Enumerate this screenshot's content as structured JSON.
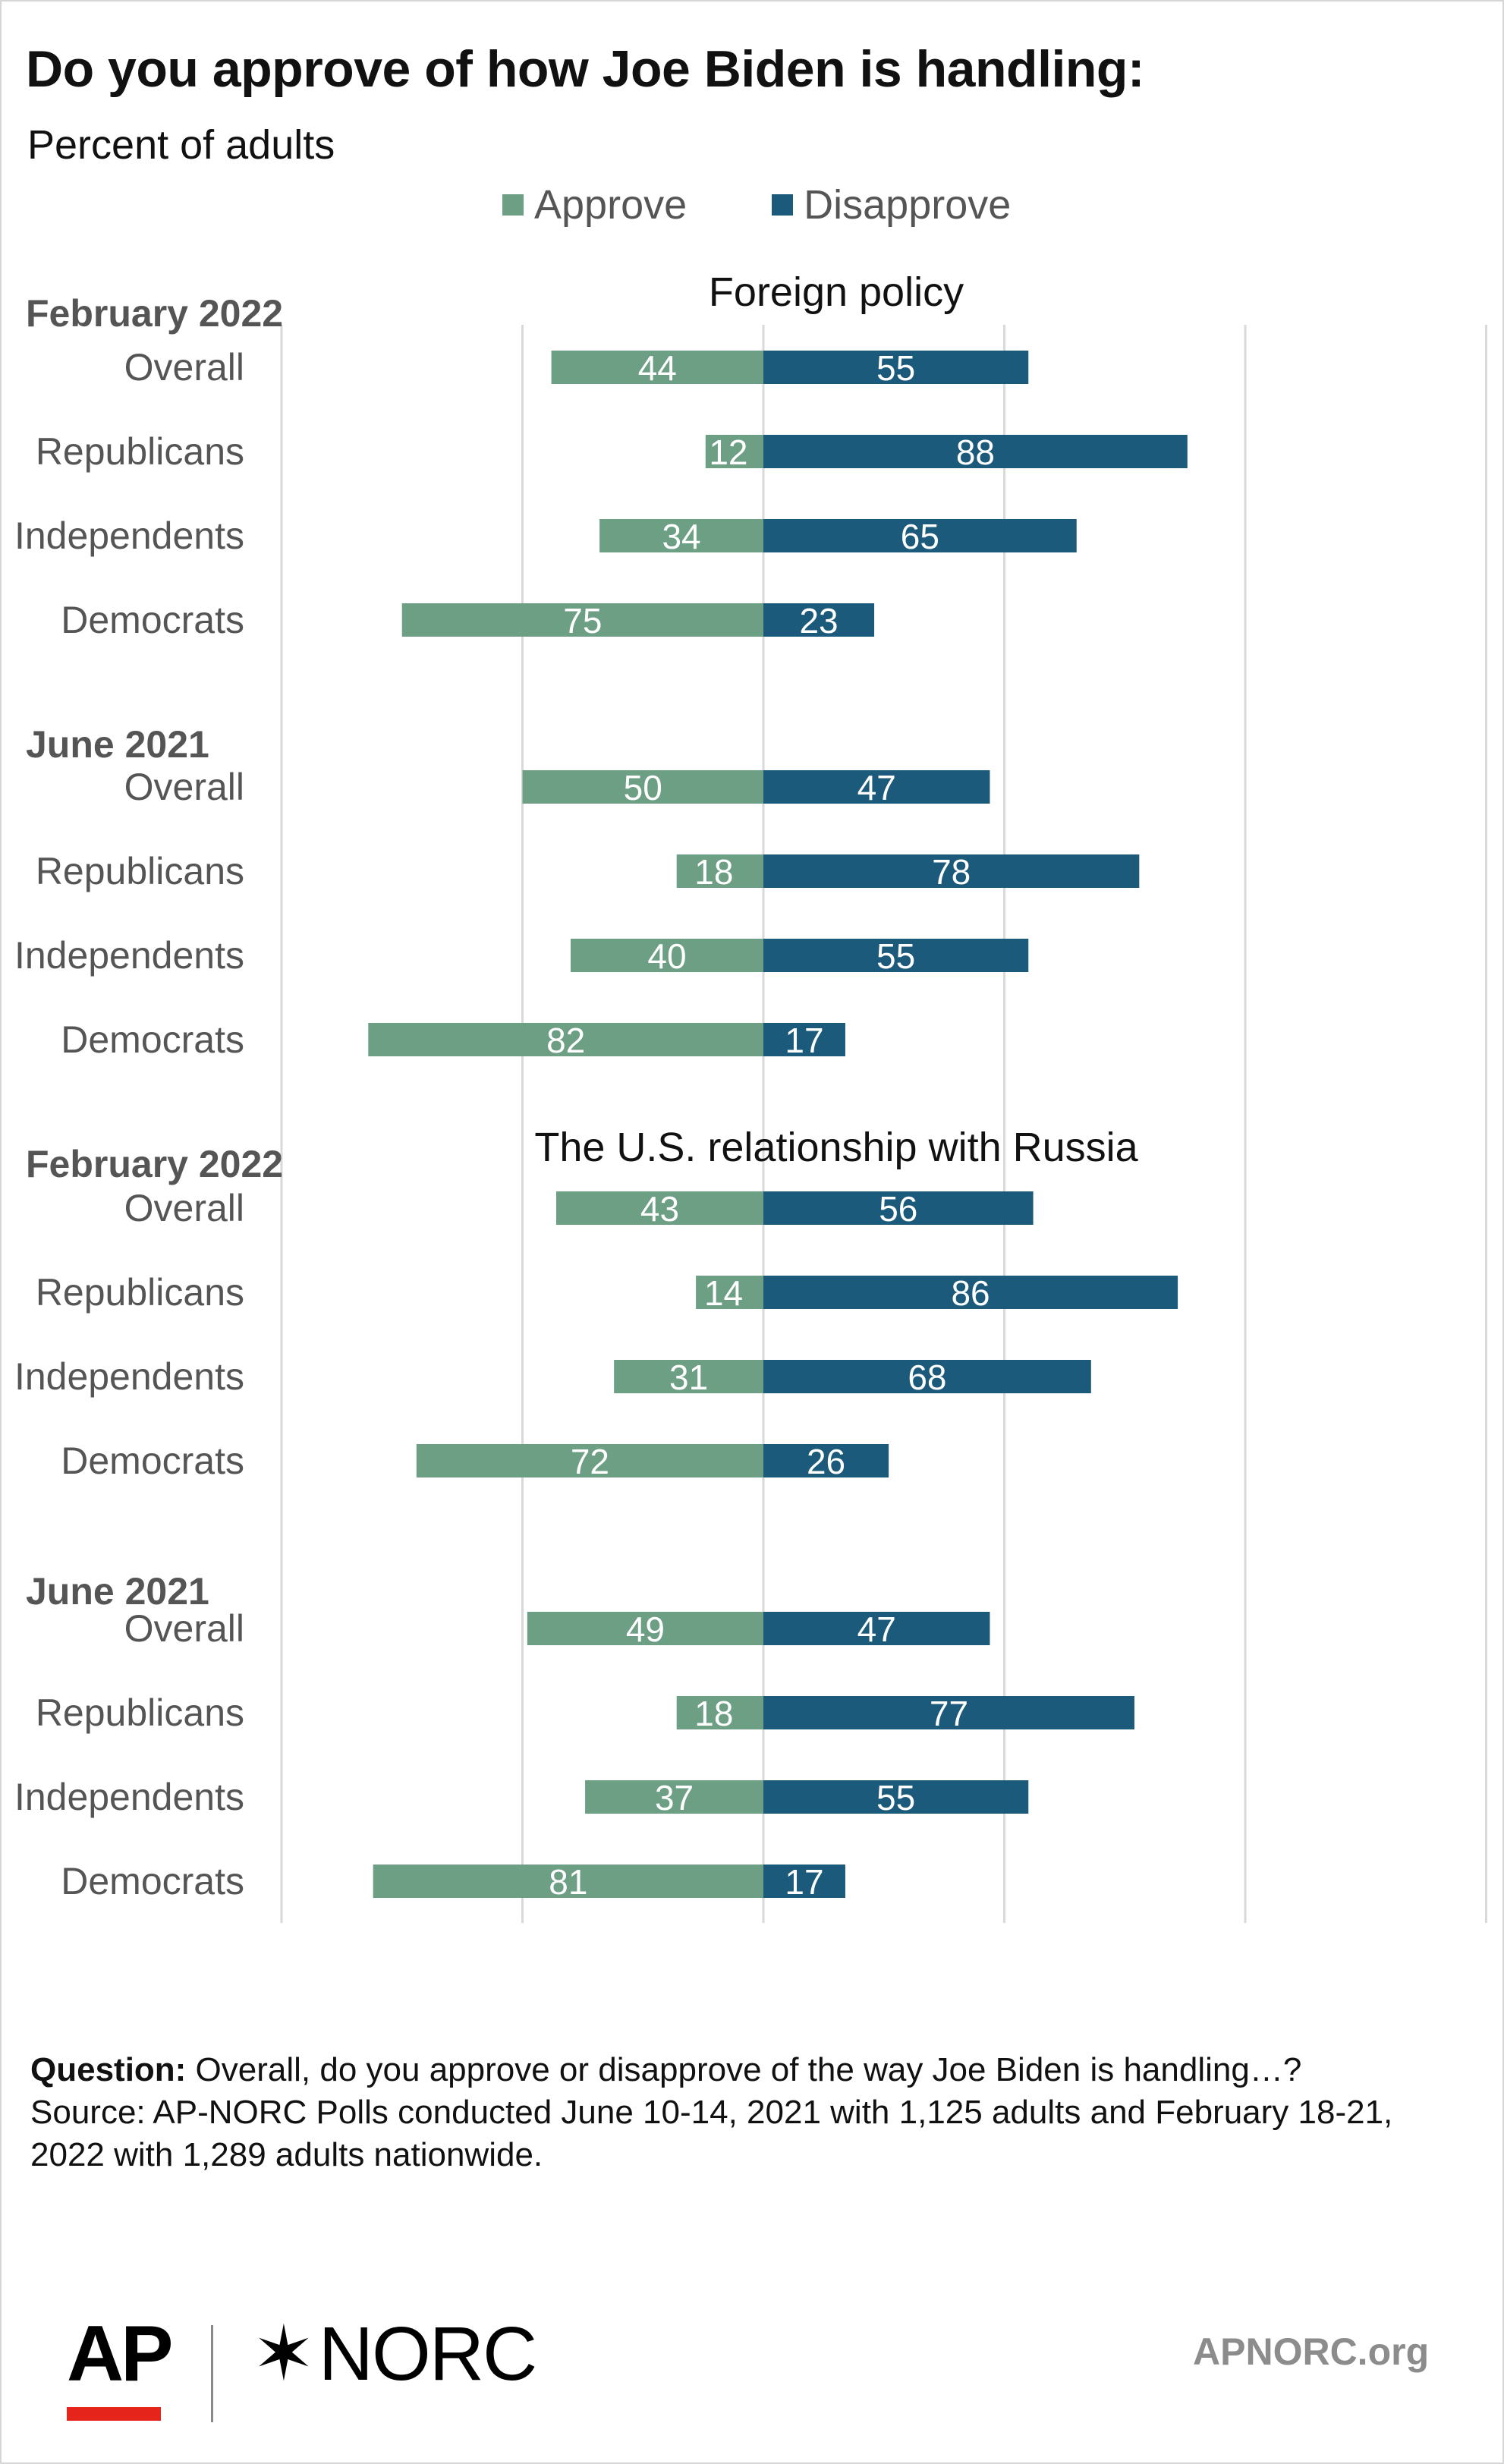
{
  "title": "Do you approve of how Joe Biden is handling:",
  "subtitle": "Percent of adults",
  "legend": [
    {
      "label": "Approve",
      "color": "#6d9f85"
    },
    {
      "label": "Disapprove",
      "color": "#1b5a7a"
    }
  ],
  "footnote": {
    "question_label": "Question:",
    "question_text": " Overall, do you approve or disapprove of the way Joe Biden is handling…?",
    "source_text": "Source: AP-NORC Polls conducted June 10-14, 2021 with 1,125 adults and February 18-21, 2022 with 1,289 adults nationwide."
  },
  "logos": {
    "ap": "AP",
    "norc_mark": "✶",
    "norc_text": "NORC"
  },
  "site": "APNORC.org",
  "chart_data": {
    "type": "bar",
    "orientation": "horizontal-diverging",
    "xlim": [
      -100,
      150
    ],
    "grid": true,
    "legend_position": "top-center",
    "series_names": [
      "Approve",
      "Disapprove"
    ],
    "colors": {
      "approve": "#6d9f85",
      "disapprove": "#1b5a7a"
    },
    "panels": [
      {
        "title": "Foreign policy",
        "groups": [
          {
            "label": "February 2022",
            "rows": [
              {
                "label": "Overall",
                "approve": 44,
                "disapprove": 55
              },
              {
                "label": "Republicans",
                "approve": 12,
                "disapprove": 88
              },
              {
                "label": "Independents",
                "approve": 34,
                "disapprove": 65
              },
              {
                "label": "Democrats",
                "approve": 75,
                "disapprove": 23
              }
            ]
          },
          {
            "label": "June 2021",
            "rows": [
              {
                "label": "Overall",
                "approve": 50,
                "disapprove": 47
              },
              {
                "label": "Republicans",
                "approve": 18,
                "disapprove": 78
              },
              {
                "label": "Independents",
                "approve": 40,
                "disapprove": 55
              },
              {
                "label": "Democrats",
                "approve": 82,
                "disapprove": 17
              }
            ]
          }
        ]
      },
      {
        "title": "The U.S. relationship with Russia",
        "groups": [
          {
            "label": "February 2022",
            "rows": [
              {
                "label": "Overall",
                "approve": 43,
                "disapprove": 56
              },
              {
                "label": "Republicans",
                "approve": 14,
                "disapprove": 86
              },
              {
                "label": "Independents",
                "approve": 31,
                "disapprove": 68
              },
              {
                "label": "Democrats",
                "approve": 72,
                "disapprove": 26
              }
            ]
          },
          {
            "label": "June 2021",
            "rows": [
              {
                "label": "Overall",
                "approve": 49,
                "disapprove": 47
              },
              {
                "label": "Republicans",
                "approve": 18,
                "disapprove": 77
              },
              {
                "label": "Independents",
                "approve": 37,
                "disapprove": 55
              },
              {
                "label": "Democrats",
                "approve": 81,
                "disapprove": 17
              }
            ]
          }
        ]
      }
    ]
  }
}
